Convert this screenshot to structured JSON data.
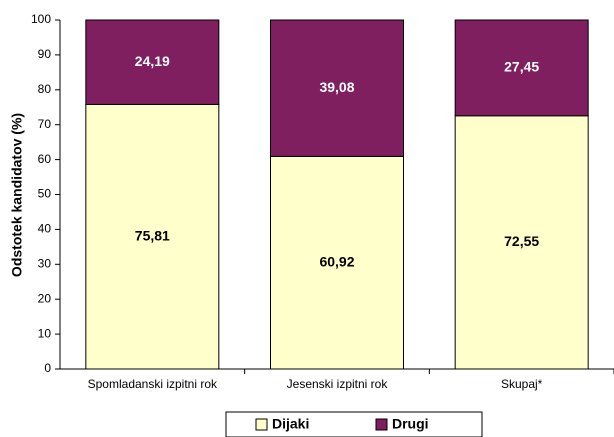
{
  "chart_data": {
    "type": "stacked_bar",
    "y_label": "Odstotek kandidatov (%)",
    "categories": [
      "Spomladanski izpitni rok",
      "Jesenski izpitni rok",
      "Skupaj*"
    ],
    "series": [
      {
        "name": "Dijaki",
        "color": "#ffffcc",
        "values": [
          75.81,
          60.92,
          72.55
        ],
        "value_labels": [
          "75,81",
          "60,92",
          "72,55"
        ]
      },
      {
        "name": "Drugi",
        "color": "#7f1f5f",
        "values": [
          24.19,
          39.08,
          27.45
        ],
        "value_labels": [
          "24,19",
          "39,08",
          "27,45"
        ]
      }
    ],
    "ylim": [
      0,
      100
    ],
    "yticks": [
      0,
      10,
      20,
      30,
      40,
      50,
      60,
      70,
      80,
      90,
      100
    ],
    "legend": "bottom"
  }
}
